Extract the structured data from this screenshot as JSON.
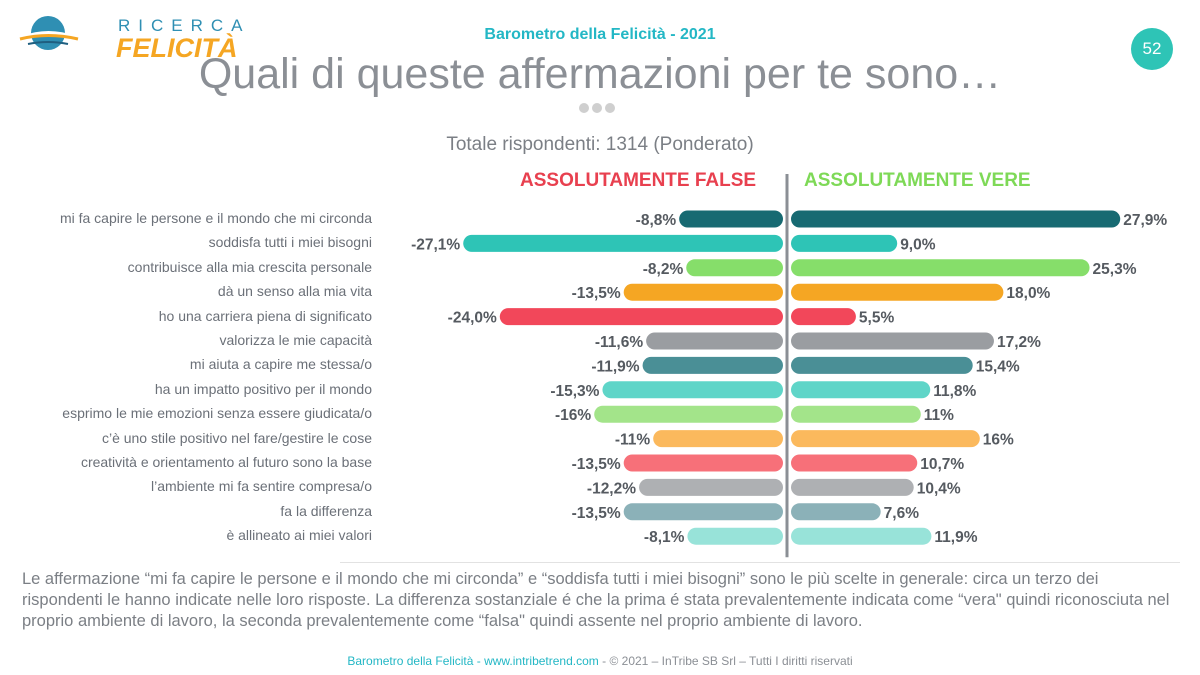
{
  "header": {
    "logo_top": "RICERCA",
    "logo_main": "FELICITÀ",
    "subtitle": "Barometro della Felicità - 2021",
    "page_number": "52",
    "title": "Quali di queste affermazioni per te sono…"
  },
  "colors": {
    "teal_dark": "#176a72",
    "teal": "#2ec4b6",
    "green": "#86de6a",
    "orange": "#f5a623",
    "red": "#f2475a",
    "gray": "#9a9da1",
    "teal_mid": "#4a8f96",
    "aqua": "#5fd5c8",
    "light_green": "#a3e48a",
    "light_orange": "#fbb95d",
    "pink": "#f77079",
    "light_gray": "#aeb0b3",
    "slate": "#8bb1b8",
    "pale_aqua": "#98e3d9"
  },
  "chart_data": {
    "type": "bar",
    "orientation": "horizontal-diverging",
    "respondents": "Totale rispondenti: 1314 (Ponderato)",
    "legend": {
      "false": "ASSOLUTAMENTE FALSE",
      "true": "ASSOLUTAMENTE VERE"
    },
    "categories": [
      "mi fa capire le persone e il mondo che mi circonda",
      "soddisfa tutti i miei bisogni",
      "contribuisce alla mia crescita personale",
      "dà un senso alla mia vita",
      "ho una carriera piena di significato",
      "valorizza le mie capacità",
      "mi aiuta a capire me stessa/o",
      "ha un impatto positivo per il mondo",
      "esprimo le mie emozioni senza essere giudicata/o",
      "c’è uno stile positivo nel fare/gestire le cose",
      "creatività e orientamento al futuro sono la base",
      "l’ambiente mi fa sentire compresa/o",
      "fa la differenza",
      "è allineato ai miei valori"
    ],
    "series": [
      {
        "name": "ASSOLUTAMENTE FALSE",
        "values": [
          -8.8,
          -27.1,
          -8.2,
          -13.5,
          -24.0,
          -11.6,
          -11.9,
          -15.3,
          -16,
          -11,
          -13.5,
          -12.2,
          -13.5,
          -8.1
        ],
        "labels": [
          "-8,8%",
          "-27,1%",
          "-8,2%",
          "-13,5%",
          "-24,0%",
          "-11,6%",
          "-11,9%",
          "-15,3%",
          "-16%",
          "-11%",
          "-13,5%",
          "-12,2%",
          "-13,5%",
          "-8,1%"
        ]
      },
      {
        "name": "ASSOLUTAMENTE VERE",
        "values": [
          27.9,
          9.0,
          25.3,
          18.0,
          5.5,
          17.2,
          15.4,
          11.8,
          11,
          16,
          10.7,
          10.4,
          7.6,
          11.9
        ],
        "labels": [
          "27,9%",
          "9,0%",
          "25,3%",
          "18,0%",
          "5,5%",
          "17,2%",
          "15,4%",
          "11,8%",
          "11%",
          "16%",
          "10,7%",
          "10,4%",
          "7,6%",
          "11,9%"
        ]
      }
    ],
    "row_colors": [
      "teal_dark",
      "teal",
      "green",
      "orange",
      "red",
      "gray",
      "teal_mid",
      "aqua",
      "light_green",
      "light_orange",
      "pink",
      "light_gray",
      "slate",
      "pale_aqua"
    ]
  },
  "description": "Le affermazione “mi fa capire le persone e il mondo che mi circonda” e “soddisfa tutti i miei bisogni” sono le più scelte in generale: circa un terzo dei rispondenti le hanno indicate nelle loro risposte. La differenza sostanziale é che la prima é stata prevalentemente indicata come “vera\" quindi riconosciuta nel proprio ambiente di lavoro, la seconda prevalentemente come “falsa\" quindi assente nel proprio ambiente di lavoro.",
  "footer": {
    "site": "Barometro della Felicità - www.intribetrend.com",
    "sep": " - ",
    "copyright": "© 2021 – InTribe SB Srl – Tutti I diritti riservati"
  }
}
